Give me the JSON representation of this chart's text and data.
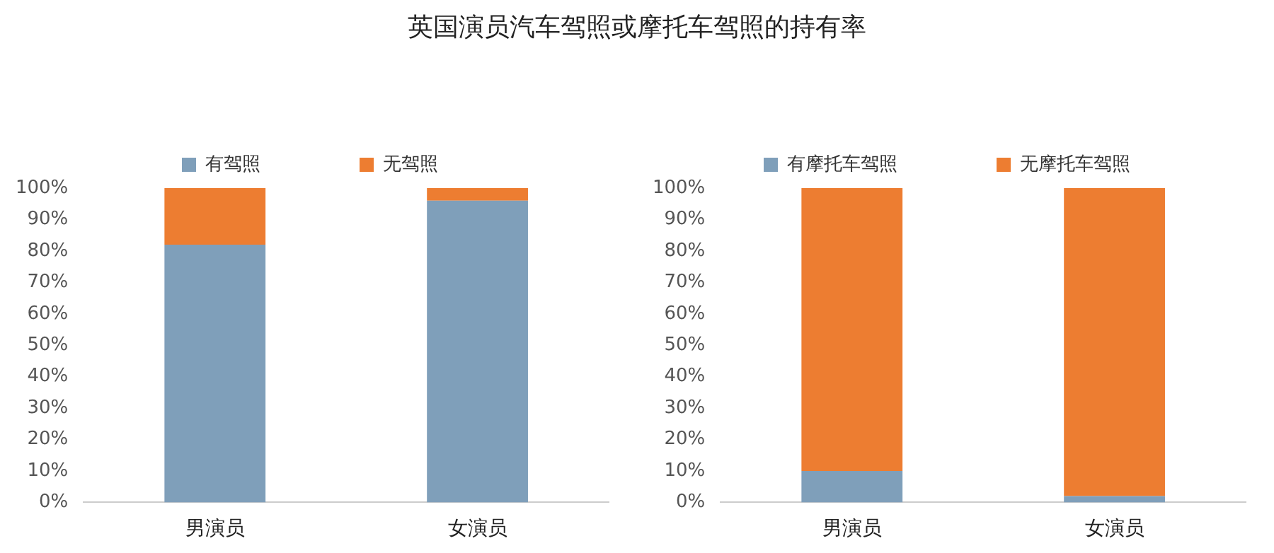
{
  "chart_data": [
    {
      "type": "bar",
      "title": "英国演员汽车驾照或摩托车驾照的持有率",
      "categories": [
        "男演员",
        "女演员"
      ],
      "stacked": true,
      "legend": "top",
      "grid": false,
      "ylim": [
        0,
        100
      ],
      "yticks": [
        {
          "value": 0,
          "label": "0%"
        },
        {
          "value": 10,
          "label": "10%"
        },
        {
          "value": 20,
          "label": "20%"
        },
        {
          "value": 30,
          "label": "30%"
        },
        {
          "value": 40,
          "label": "40%"
        },
        {
          "value": 50,
          "label": "50%"
        },
        {
          "value": 60,
          "label": "60%"
        },
        {
          "value": 70,
          "label": "70%"
        },
        {
          "value": 80,
          "label": "80%"
        },
        {
          "value": 90,
          "label": "90%"
        },
        {
          "value": 100,
          "label": "100%"
        }
      ],
      "series": [
        {
          "name": "有驾照",
          "color": "#7f9fba",
          "values": [
            82,
            96
          ]
        },
        {
          "name": "无驾照",
          "color": "#ed7d31",
          "values": [
            18,
            4
          ]
        }
      ]
    },
    {
      "type": "bar",
      "categories": [
        "男演员",
        "女演员"
      ],
      "stacked": true,
      "legend": "top",
      "grid": false,
      "ylim": [
        0,
        100
      ],
      "yticks": [
        {
          "value": 0,
          "label": "0%"
        },
        {
          "value": 10,
          "label": "10%"
        },
        {
          "value": 20,
          "label": "20%"
        },
        {
          "value": 30,
          "label": "30%"
        },
        {
          "value": 40,
          "label": "40%"
        },
        {
          "value": 50,
          "label": "50%"
        },
        {
          "value": 60,
          "label": "60%"
        },
        {
          "value": 70,
          "label": "70%"
        },
        {
          "value": 80,
          "label": "80%"
        },
        {
          "value": 90,
          "label": "90%"
        },
        {
          "value": 100,
          "label": "100%"
        }
      ],
      "series": [
        {
          "name": "有摩托车驾照",
          "color": "#7f9fba",
          "values": [
            10,
            2
          ]
        },
        {
          "name": "无摩托车驾照",
          "color": "#ed7d31",
          "values": [
            90,
            98
          ]
        }
      ]
    }
  ]
}
